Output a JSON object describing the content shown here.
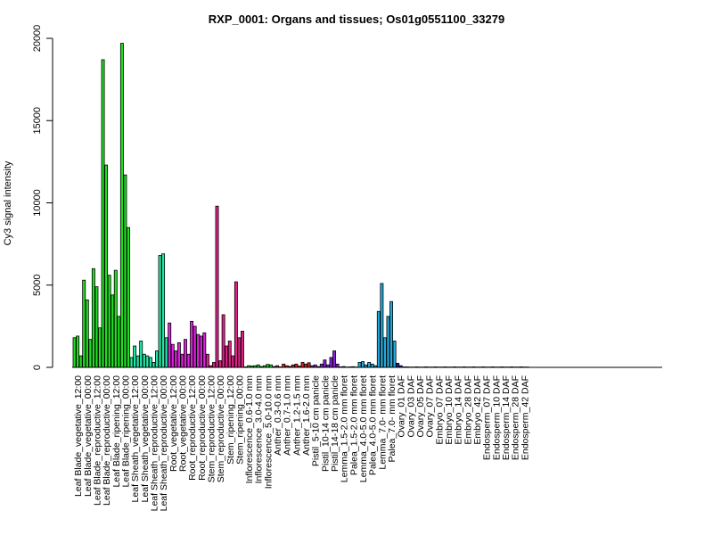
{
  "chart_data": {
    "type": "bar",
    "title": "RXP_0001: Organs and tissues; Os01g0551100_33279",
    "xlabel": "",
    "ylabel": "Cy3 signal intensity",
    "ylim": [
      0,
      20000
    ],
    "yticks": [
      0,
      5000,
      10000,
      15000,
      20000
    ],
    "grid": false,
    "categories_labeled": [
      "Leaf Blade_vegetative_12:00",
      "Leaf Blade_vegetative_00:00",
      "Leaf Blade_reproductive_12:00",
      "Leaf Blade_reproductive_00:00",
      "Leaf Blade_ripening_12:00",
      "Leaf Blade_ripening_00:00",
      "Leaf Sheath_vegetative_12:00",
      "Leaf Sheath_vegetative_00:00",
      "Leaf Sheath_reproductive_12:00",
      "Leaf Sheath_reproductive_00:00",
      "Root_vegetative_12:00",
      "Root_vegetative_00:00",
      "Root_reproductive_12:00",
      "Root_reproductive_00:00",
      "Stem_reproductive_12:00",
      "Stem_reproductive_00:00",
      "Stem_ripening_12:00",
      "Stem_ripening_00:00",
      "Inflorescence_0.6-1.0 mm",
      "Inflorescence_3.0-4.0 mm",
      "Inflorescence_5.0-10.0 mm",
      "Anther_0.3-0.6 mm",
      "Anther_0.7-1.0 mm",
      "Anther_1.2-1.5 mm",
      "Anther_1.6-2.0 mm",
      "Pistil_5-10 cm panicle",
      "Pistil_10-14 cm panicle",
      "Pistil_14-18 cm panicle",
      "Lemma_1.5-2.0 mm floret",
      "Palea_1.5-2.0 mm floret",
      "Lemma_4.0-5.0 mm floret",
      "Palea_4.0-5.0 mm floret",
      "Lemma_7.0- mm floret",
      "Palea_7.0- mm floret",
      "Ovary_01 DAF",
      "Ovary_03 DAF",
      "Ovary_05 DAF",
      "Ovary_07 DAF",
      "Embryo_07 DAF",
      "Embryo_10 DAF",
      "Embryo_14 DAF",
      "Embryo_28 DAF",
      "Embryo_42 DAF",
      "Endosperm_07 DAF",
      "Endosperm_10 DAF",
      "Endosperm_14 DAF",
      "Endosperm_28 DAF",
      "Endosperm_42 DAF"
    ],
    "groups": [
      {
        "color": "#22dd22",
        "values": [
          1800,
          1900,
          700,
          5300,
          4100,
          1700,
          6000,
          4900,
          2400,
          18700,
          12300,
          5600,
          4400,
          5900,
          3100,
          19700,
          11700,
          8500
        ]
      },
      {
        "color": "#22e8a8",
        "values": [
          600,
          1300,
          700,
          1600,
          800,
          700,
          600,
          300,
          1000,
          6800,
          6900,
          1800
        ]
      },
      {
        "color": "#dd22dd",
        "values": [
          2700,
          1400,
          1000,
          1500,
          800,
          1700,
          800,
          2800,
          2500,
          2000,
          1900,
          2100
        ]
      },
      {
        "color": "#dd2288",
        "values": [
          800,
          100,
          300,
          9800,
          400,
          3200,
          1300,
          1600,
          700,
          5200,
          1800,
          2200
        ]
      },
      {
        "color": "#22dd22",
        "values": [
          30,
          100,
          80,
          100,
          150,
          50,
          100,
          180,
          150
        ]
      },
      {
        "color": "#dd2222",
        "values": [
          50,
          100,
          30,
          200,
          100,
          60,
          150,
          200,
          80,
          300,
          200,
          280
        ]
      },
      {
        "color": "#8822dd",
        "values": [
          100,
          150,
          50,
          200,
          450,
          150,
          600,
          1000,
          200
        ]
      },
      {
        "color": "#22aadd",
        "values": [
          30,
          50,
          20,
          30,
          40,
          20,
          300,
          350,
          150,
          300,
          200,
          100,
          3400,
          5100,
          1800,
          3100,
          4000,
          1600
        ]
      },
      {
        "color": "#2222aa",
        "values": [
          250,
          100,
          30,
          30,
          20,
          20,
          30,
          20,
          20,
          30,
          20,
          20
        ]
      },
      {
        "color": "#22dd22",
        "values": [
          30,
          20,
          20,
          30,
          20,
          20,
          30,
          20,
          20,
          30,
          20,
          20,
          30,
          20,
          20
        ]
      },
      {
        "color": "#22aadd",
        "values": [
          30,
          20,
          20,
          30,
          20,
          20,
          30,
          20,
          20,
          30,
          20,
          20,
          30,
          20,
          20
        ]
      }
    ]
  }
}
